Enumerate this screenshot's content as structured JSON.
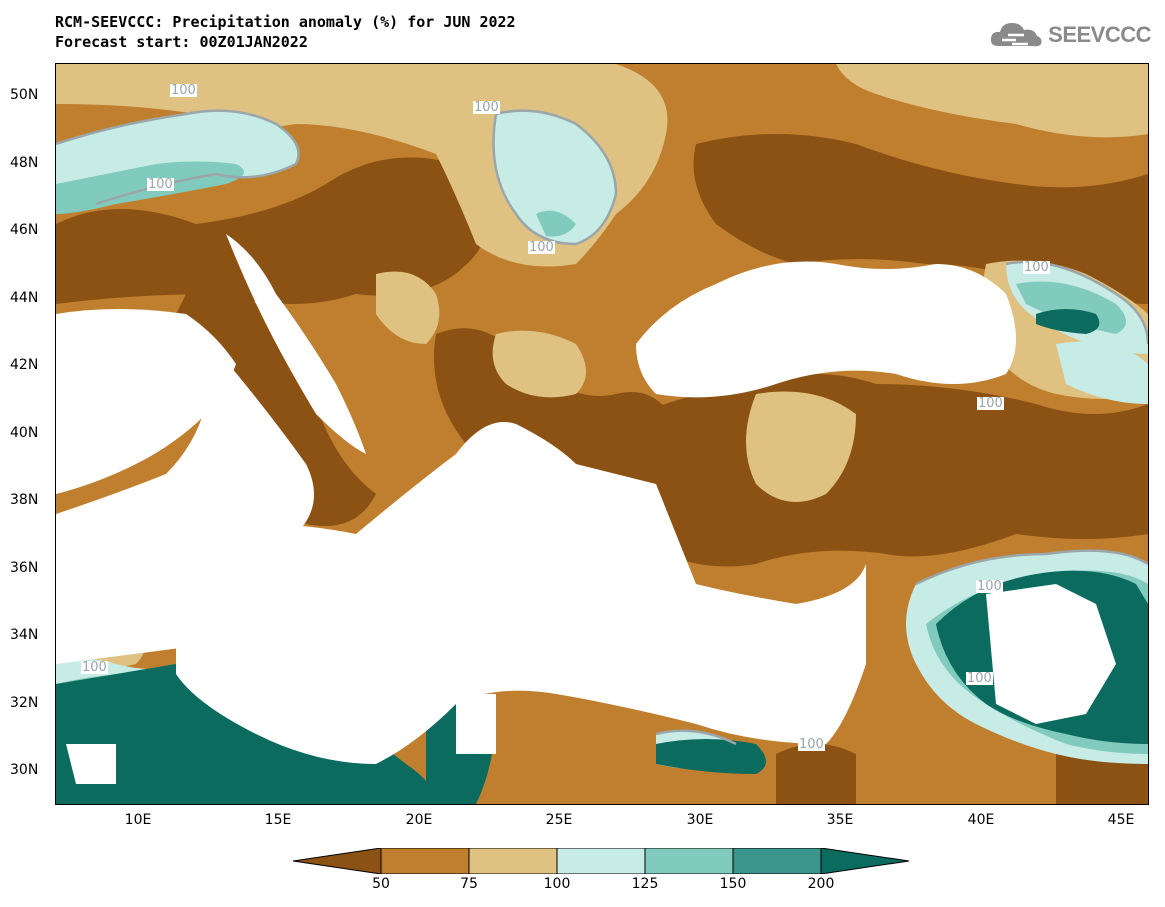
{
  "header": {
    "title_line1": "RCM-SEEVCCC: Precipitation anomaly (%) for JUN 2022",
    "title_line2": "Forecast start: 00Z01JAN2022",
    "logo_text": "SEEVCCC"
  },
  "axes": {
    "lat_ticks": [
      "50N",
      "48N",
      "46N",
      "44N",
      "42N",
      "40N",
      "38N",
      "36N",
      "34N",
      "32N",
      "30N"
    ],
    "lon_ticks": [
      "10E",
      "15E",
      "20E",
      "25E",
      "30E",
      "35E",
      "40E",
      "45E"
    ]
  },
  "contour_labels": [
    "100",
    "100",
    "100",
    "100",
    "100",
    "100",
    "100",
    "100",
    "100",
    "100"
  ],
  "legend": {
    "labels": [
      "50",
      "75",
      "100",
      "125",
      "150",
      "200"
    ],
    "colors": [
      "#8b5214",
      "#c07f2f",
      "#dfc282",
      "#c7ebe5",
      "#80cbbd",
      "#3b958a",
      "#0b6b5f"
    ]
  }
}
